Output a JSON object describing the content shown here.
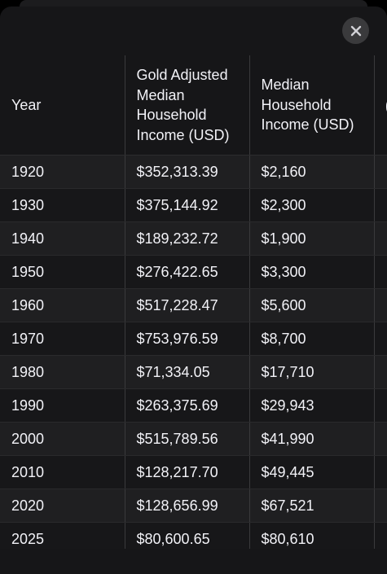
{
  "sheet": {
    "close_icon": "close-icon"
  },
  "table": {
    "headers": {
      "year": "Year",
      "gold": "Gold Adjusted Median Household Income (USD)",
      "median": "Median Household Income (USD)",
      "partial": "("
    },
    "rows": [
      {
        "year": "1920",
        "gold": "$352,313.39",
        "median": "$2,160"
      },
      {
        "year": "1930",
        "gold": "$375,144.92",
        "median": "$2,300"
      },
      {
        "year": "1940",
        "gold": "$189,232.72",
        "median": "$1,900"
      },
      {
        "year": "1950",
        "gold": "$276,422.65",
        "median": "$3,300"
      },
      {
        "year": "1960",
        "gold": "$517,228.47",
        "median": "$5,600"
      },
      {
        "year": "1970",
        "gold": "$753,976.59",
        "median": "$8,700"
      },
      {
        "year": "1980",
        "gold": "$71,334.05",
        "median": "$17,710"
      },
      {
        "year": "1990",
        "gold": "$263,375.69",
        "median": "$29,943"
      },
      {
        "year": "2000",
        "gold": "$515,789.56",
        "median": "$41,990"
      },
      {
        "year": "2010",
        "gold": "$128,217.70",
        "median": "$49,445"
      },
      {
        "year": "2020",
        "gold": "$128,656.99",
        "median": "$67,521"
      },
      {
        "year": "2025",
        "gold": "$80,600.65",
        "median": "$80,610"
      }
    ]
  }
}
